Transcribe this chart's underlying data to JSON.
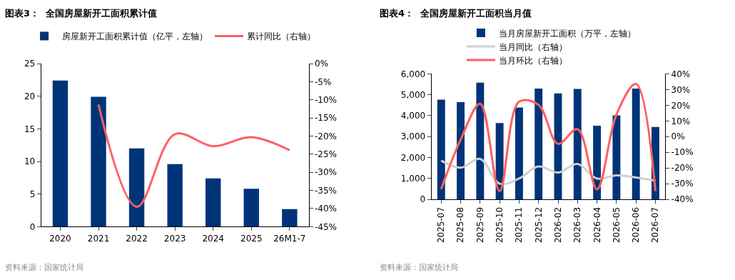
{
  "chart_data": [
    {
      "type": "bar",
      "title": "图表3：  全国房屋新开工面积累计值",
      "categories": [
        "2020",
        "2021",
        "2022",
        "2023",
        "2024",
        "2025",
        "26M1-7"
      ],
      "series": [
        {
          "name": "房屋新开工面积累计值（亿平，左轴）",
          "color": "#003478",
          "values": [
            22.4,
            19.9,
            12.0,
            9.6,
            7.4,
            5.8,
            2.7
          ]
        },
        {
          "name": "累计同比（右轴）",
          "color": "#ff5f5f",
          "type": "line",
          "axis": "y2",
          "values": [
            null,
            -11.3,
            -39.5,
            -19.5,
            -22.8,
            -20.3,
            -23.9
          ]
        }
      ],
      "ylim": [
        0,
        25
      ],
      "yticks": [
        0,
        5,
        10,
        15,
        20,
        25
      ],
      "y2lim": [
        -45,
        0
      ],
      "y2ticks": [
        {
          "value": -45,
          "label": "-45%"
        },
        {
          "value": -40,
          "label": "-40%"
        },
        {
          "value": -35,
          "label": "-35%"
        },
        {
          "value": -30,
          "label": "-30%"
        },
        {
          "value": -25,
          "label": "-25%"
        },
        {
          "value": -20,
          "label": "-20%"
        },
        {
          "value": -15,
          "label": "-15%"
        },
        {
          "value": -10,
          "label": "-10%"
        },
        {
          "value": -5,
          "label": "-5%"
        },
        {
          "value": 0,
          "label": "0%"
        }
      ],
      "legend": "top",
      "annotations": [
        "资料来源：国家统计局"
      ]
    },
    {
      "type": "bar",
      "title": "图表4：  全国房屋新开工面积当月值",
      "categories": [
        "2025-07",
        "2025-08",
        "2025-09",
        "2025-10",
        "2025-11",
        "2025-12",
        "2026-02",
        "2026-03",
        "2026-04",
        "2026-05",
        "2026-06",
        "2026-07"
      ],
      "series": [
        {
          "name": "当月房屋新开工面积（万平，左轴）",
          "color": "#003478",
          "values": [
            4770,
            4650,
            5580,
            3650,
            4390,
            5300,
            5070,
            5280,
            3520,
            4020,
            5300,
            3460
          ]
        },
        {
          "name": "当月同比（右轴）",
          "color": "#d0d0d0",
          "type": "line",
          "axis": "y2",
          "values": [
            -15.3,
            -19.8,
            -14.2,
            -30,
            -26.7,
            -19,
            -22.9,
            -17.4,
            -26.7,
            -24.7,
            -26,
            -28
          ]
        },
        {
          "name": "当月环比（右轴）",
          "color": "#ff5f5f",
          "type": "line",
          "axis": "y2",
          "values": [
            -33.4,
            -1.9,
            20.9,
            -34.7,
            22.3,
            20.2,
            -4.6,
            4.8,
            -33.6,
            14.2,
            33.6,
            -34.7
          ]
        }
      ],
      "ylim": [
        0,
        6000
      ],
      "yticks": [
        {
          "value": 0,
          "label": "0"
        },
        {
          "value": 1000,
          "label": "1,000"
        },
        {
          "value": 2000,
          "label": "2,000"
        },
        {
          "value": 3000,
          "label": "3,000"
        },
        {
          "value": 4000,
          "label": "4,000"
        },
        {
          "value": 5000,
          "label": "5,000"
        },
        {
          "value": 6000,
          "label": "6,000"
        }
      ],
      "y2lim": [
        -40,
        40
      ],
      "y2ticks": [
        {
          "value": -40,
          "label": "-40%"
        },
        {
          "value": -30,
          "label": "-30%"
        },
        {
          "value": -20,
          "label": "-20%"
        },
        {
          "value": -10,
          "label": "-10%"
        },
        {
          "value": 0,
          "label": "0%"
        },
        {
          "value": 10,
          "label": "10%"
        },
        {
          "value": 20,
          "label": "20%"
        },
        {
          "value": 30,
          "label": "30%"
        },
        {
          "value": 40,
          "label": "40%"
        }
      ],
      "legend": "top left",
      "annotations": [
        "资料来源：国家统计局"
      ]
    }
  ]
}
